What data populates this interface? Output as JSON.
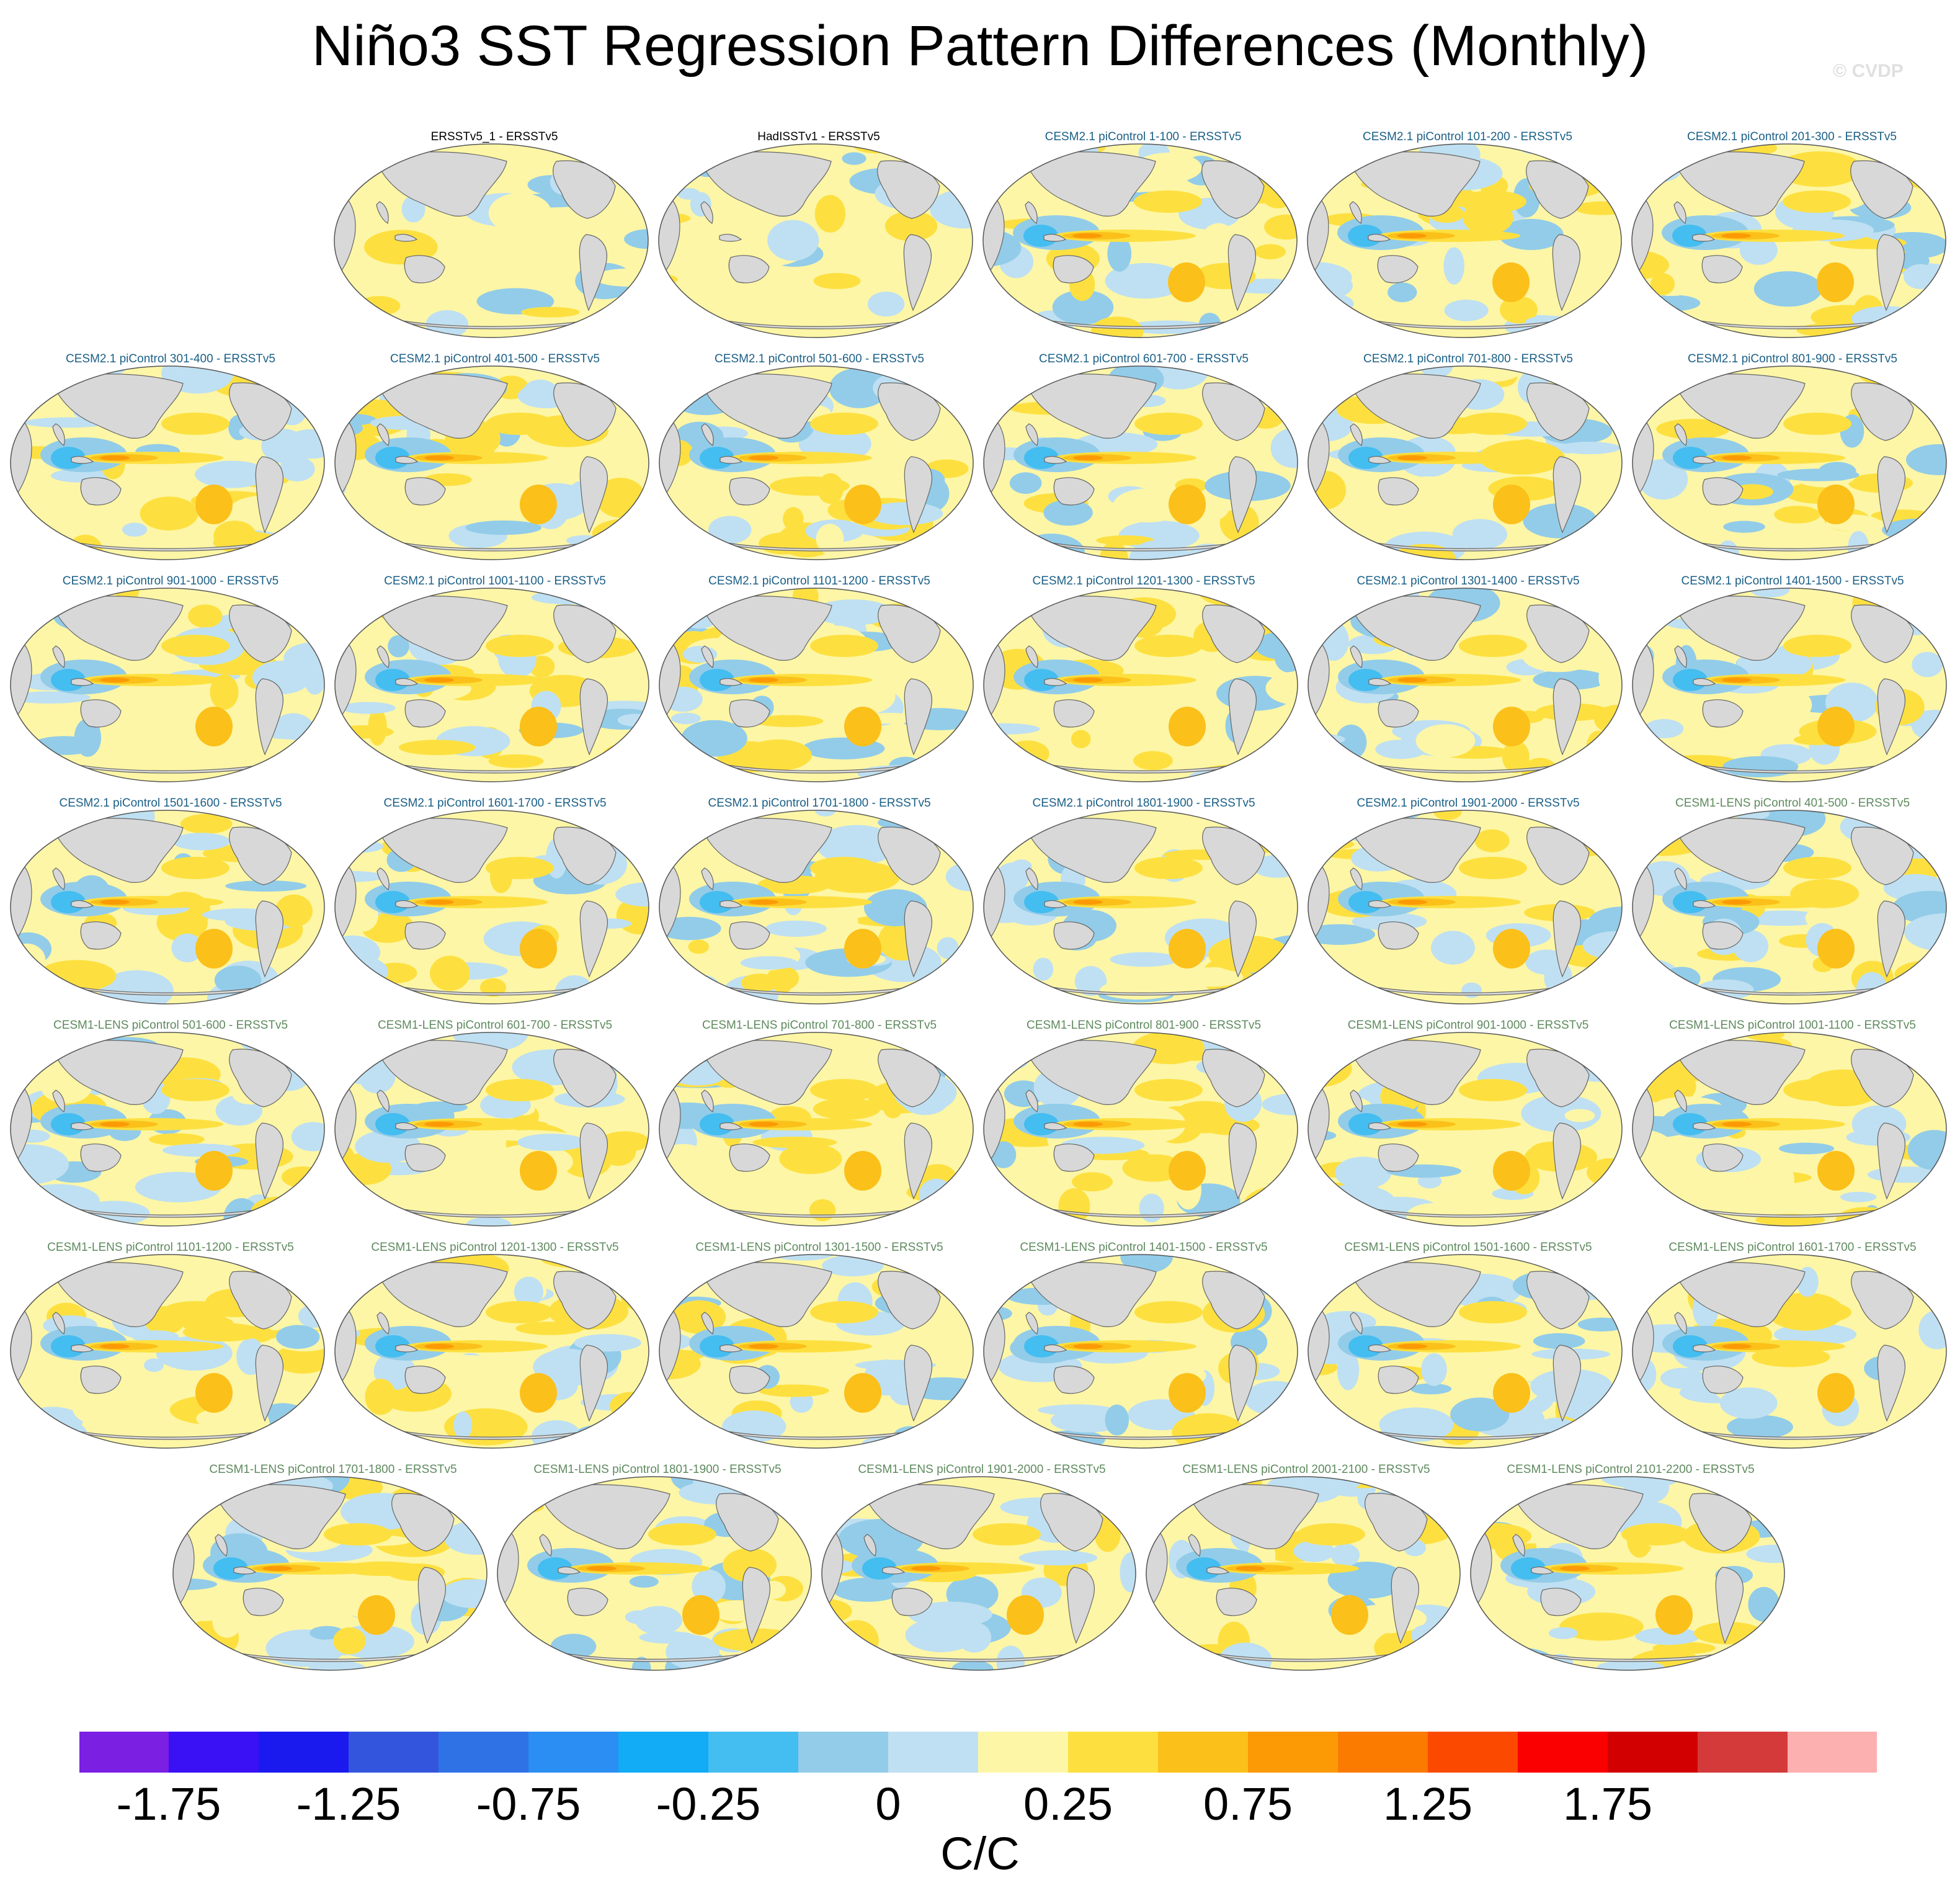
{
  "title": "Niño3 SST Regression Pattern Differences (Monthly)",
  "watermark": "© CVDP",
  "colors": {
    "obs_title": "#000000",
    "cesm2_title": "#1a5f86",
    "cesm1_title": "#5e8a5e",
    "land": "#d8d8d8",
    "coast": "#666666"
  },
  "chart_data": {
    "type": "map",
    "projection": "Robinson (Pacific-centred)",
    "variable": "SST regression difference vs ERSSTv5",
    "colorbar": {
      "units": "C/C",
      "levels": [
        -2.0,
        -1.75,
        -1.5,
        -1.25,
        -1.0,
        -0.75,
        -0.5,
        -0.25,
        -0.1,
        0,
        0.1,
        0.25,
        0.5,
        0.75,
        1.0,
        1.25,
        1.5,
        1.75,
        2.0
      ],
      "tick_labels": [
        "-1.75",
        "-1.25",
        "-0.75",
        "-0.25",
        "0",
        "0.25",
        "0.75",
        "1.25",
        "1.75"
      ],
      "colors": [
        "#7b1fe3",
        "#3a10f5",
        "#1a1aee",
        "#3355dd",
        "#2f72e6",
        "#2a8ef2",
        "#11acf5",
        "#44bdf0",
        "#92cce9",
        "#bfe0f2",
        "#fdf6a6",
        "#fde040",
        "#fbc01a",
        "#fb9a05",
        "#fb7a00",
        "#fb4a00",
        "#fa0000",
        "#d20000",
        "#d53a3a",
        "#fdb0b0"
      ]
    },
    "panels": [
      {
        "label": "ERSSTv5_1 - ERSSTv5",
        "group": "obs"
      },
      {
        "label": "HadISSTv1 - ERSSTv5",
        "group": "obs"
      },
      {
        "label": "CESM2.1 piControl 1-100 - ERSSTv5",
        "group": "cesm2"
      },
      {
        "label": "CESM2.1 piControl 101-200 - ERSSTv5",
        "group": "cesm2"
      },
      {
        "label": "CESM2.1 piControl 201-300 - ERSSTv5",
        "group": "cesm2"
      },
      {
        "label": "CESM2.1 piControl 301-400 - ERSSTv5",
        "group": "cesm2"
      },
      {
        "label": "CESM2.1 piControl 401-500 - ERSSTv5",
        "group": "cesm2"
      },
      {
        "label": "CESM2.1 piControl 501-600 - ERSSTv5",
        "group": "cesm2"
      },
      {
        "label": "CESM2.1 piControl 601-700 - ERSSTv5",
        "group": "cesm2"
      },
      {
        "label": "CESM2.1 piControl 701-800 - ERSSTv5",
        "group": "cesm2"
      },
      {
        "label": "CESM2.1 piControl 801-900 - ERSSTv5",
        "group": "cesm2"
      },
      {
        "label": "CESM2.1 piControl 901-1000 - ERSSTv5",
        "group": "cesm2"
      },
      {
        "label": "CESM2.1 piControl 1001-1100 - ERSSTv5",
        "group": "cesm2"
      },
      {
        "label": "CESM2.1 piControl 1101-1200 - ERSSTv5",
        "group": "cesm2"
      },
      {
        "label": "CESM2.1 piControl 1201-1300 - ERSSTv5",
        "group": "cesm2"
      },
      {
        "label": "CESM2.1 piControl 1301-1400 - ERSSTv5",
        "group": "cesm2"
      },
      {
        "label": "CESM2.1 piControl 1401-1500 - ERSSTv5",
        "group": "cesm2"
      },
      {
        "label": "CESM2.1 piControl 1501-1600 - ERSSTv5",
        "group": "cesm2"
      },
      {
        "label": "CESM2.1 piControl 1601-1700 - ERSSTv5",
        "group": "cesm2"
      },
      {
        "label": "CESM2.1 piControl 1701-1800 - ERSSTv5",
        "group": "cesm2"
      },
      {
        "label": "CESM2.1 piControl 1801-1900 - ERSSTv5",
        "group": "cesm2"
      },
      {
        "label": "CESM2.1 piControl 1901-2000 - ERSSTv5",
        "group": "cesm2"
      },
      {
        "label": "CESM1-LENS piControl 401-500 - ERSSTv5",
        "group": "cesm1"
      },
      {
        "label": "CESM1-LENS piControl 501-600 - ERSSTv5",
        "group": "cesm1"
      },
      {
        "label": "CESM1-LENS piControl 601-700 - ERSSTv5",
        "group": "cesm1"
      },
      {
        "label": "CESM1-LENS piControl 701-800 - ERSSTv5",
        "group": "cesm1"
      },
      {
        "label": "CESM1-LENS piControl 801-900 - ERSSTv5",
        "group": "cesm1"
      },
      {
        "label": "CESM1-LENS piControl 901-1000 - ERSSTv5",
        "group": "cesm1"
      },
      {
        "label": "CESM1-LENS piControl 1001-1100 - ERSSTv5",
        "group": "cesm1"
      },
      {
        "label": "CESM1-LENS piControl 1101-1200 - ERSSTv5",
        "group": "cesm1"
      },
      {
        "label": "CESM1-LENS piControl 1201-1300 - ERSSTv5",
        "group": "cesm1"
      },
      {
        "label": "CESM1-LENS piControl 1301-1500 - ERSSTv5",
        "group": "cesm1"
      },
      {
        "label": "CESM1-LENS piControl 1401-1500 - ERSSTv5",
        "group": "cesm1"
      },
      {
        "label": "CESM1-LENS piControl 1501-1600 - ERSSTv5",
        "group": "cesm1"
      },
      {
        "label": "CESM1-LENS piControl 1601-1700 - ERSSTv5",
        "group": "cesm1"
      },
      {
        "label": "CESM1-LENS piControl 1701-1800 - ERSSTv5",
        "group": "cesm1"
      },
      {
        "label": "CESM1-LENS piControl 1801-1900 - ERSSTv5",
        "group": "cesm1"
      },
      {
        "label": "CESM1-LENS piControl 1901-2000 - ERSSTv5",
        "group": "cesm1"
      },
      {
        "label": "CESM1-LENS piControl 2001-2100 - ERSSTv5",
        "group": "cesm1"
      },
      {
        "label": "CESM1-LENS piControl 2101-2200 - ERSSTv5",
        "group": "cesm1"
      }
    ]
  }
}
